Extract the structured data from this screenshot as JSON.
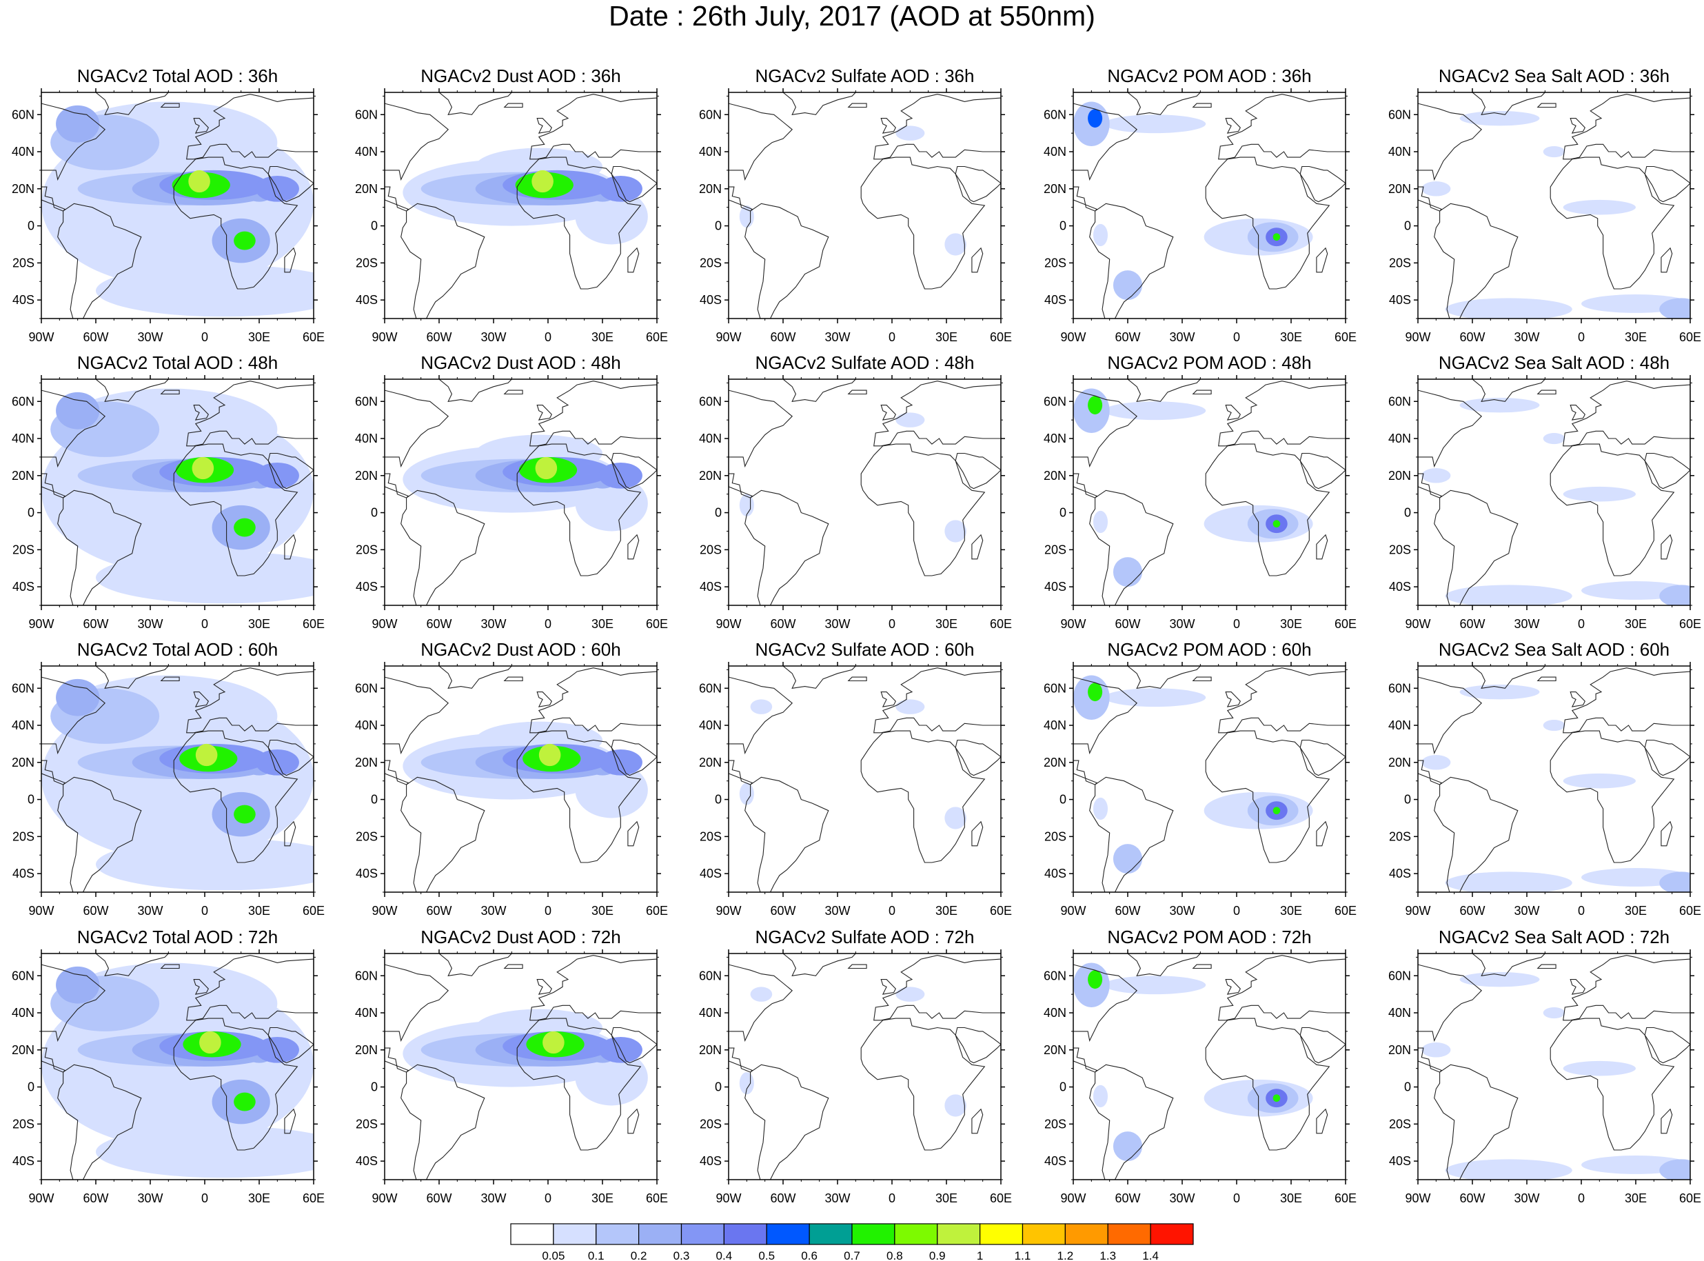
{
  "main_title": "Date : 26th July, 2017 (AOD at 550nm)",
  "panel_titles": [
    [
      "NGACv2 Total AOD : 36h",
      "NGACv2 Dust AOD : 36h",
      "NGACv2 Sulfate AOD : 36h",
      "NGACv2 POM AOD : 36h",
      "NGACv2 Sea Salt AOD : 36h"
    ],
    [
      "NGACv2 Total AOD : 48h",
      "NGACv2 Dust AOD : 48h",
      "NGACv2 Sulfate AOD : 48h",
      "NGACv2 POM AOD : 48h",
      "NGACv2 Sea Salt AOD : 48h"
    ],
    [
      "NGACv2 Total AOD : 60h",
      "NGACv2 Dust AOD : 60h",
      "NGACv2 Sulfate AOD : 60h",
      "NGACv2 POM AOD : 60h",
      "NGACv2 Sea Salt AOD : 60h"
    ],
    [
      "NGACv2 Total AOD : 72h",
      "NGACv2 Dust AOD : 72h",
      "NGACv2 Sulfate AOD : 72h",
      "NGACv2 POM AOD : 72h",
      "NGACv2 Sea Salt  AOD : 72h"
    ]
  ],
  "lat_ticks": [
    "60N",
    "40N",
    "20N",
    "0",
    "20S",
    "40S"
  ],
  "lon_ticks": [
    "90W",
    "60W",
    "30W",
    "0",
    "30E",
    "60E"
  ],
  "colorbar": {
    "labels": [
      "0.05",
      "0.1",
      "0.2",
      "0.3",
      "0.4",
      "0.5",
      "0.6",
      "0.7",
      "0.8",
      "0.9",
      "1",
      "1.1",
      "1.2",
      "1.3",
      "1.4"
    ],
    "colors": [
      "#ffffff",
      "#d6e0ff",
      "#b4c6fa",
      "#9bb0f5",
      "#8396f5",
      "#6a76f0",
      "#0058ff",
      "#009f94",
      "#21f200",
      "#7dfa00",
      "#bff23c",
      "#ffff00",
      "#ffc400",
      "#ff9a00",
      "#ff6a00",
      "#ff1400"
    ]
  }
}
